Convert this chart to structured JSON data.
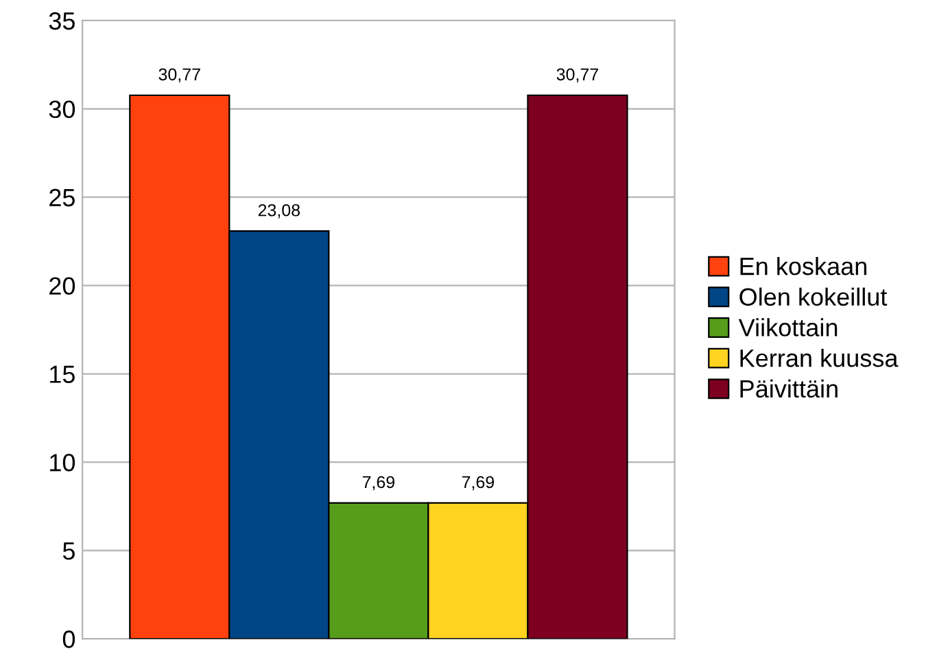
{
  "chart_data": {
    "type": "bar",
    "categories": [
      null
    ],
    "series": [
      {
        "name": "En koskaan",
        "color": "#ff420e",
        "values": [
          30.77
        ],
        "value_labels": [
          "30,77"
        ]
      },
      {
        "name": "Olen kokeillut",
        "color": "#004586",
        "values": [
          23.08
        ],
        "value_labels": [
          "23,08"
        ]
      },
      {
        "name": "Viikottain",
        "color": "#579d1c",
        "values": [
          7.69
        ],
        "value_labels": [
          "7,69"
        ]
      },
      {
        "name": "Kerran kuussa",
        "color": "#ffd320",
        "values": [
          7.69
        ],
        "value_labels": [
          "7,69"
        ]
      },
      {
        "name": "Päivittäin",
        "color": "#7e0021",
        "values": [
          30.77
        ],
        "value_labels": [
          "30,77"
        ]
      }
    ],
    "ylim": [
      0,
      35
    ],
    "yticks": [
      0,
      5,
      10,
      15,
      20,
      25,
      30,
      35
    ],
    "grid": "y",
    "legend": "right"
  }
}
